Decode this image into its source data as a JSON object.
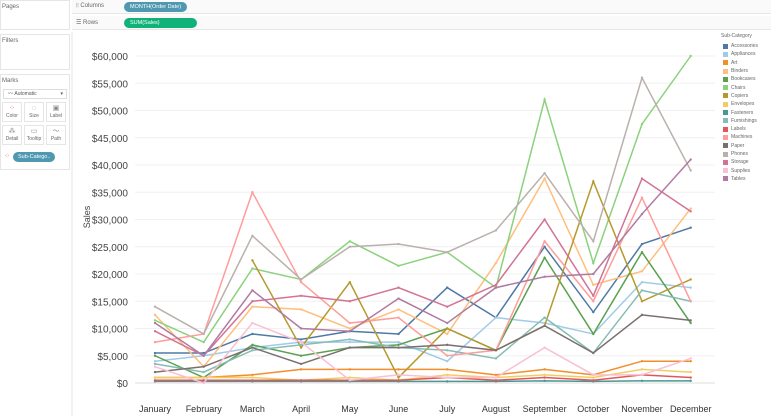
{
  "panels": {
    "pages": "Pages",
    "filters": "Filters",
    "marks": "Marks"
  },
  "marks": {
    "type": "Automatic",
    "buttons": [
      "Color",
      "Size",
      "Label",
      "Detail",
      "Tooltip",
      "Path"
    ],
    "pill": "Sub-Catego.."
  },
  "shelves": {
    "columns_label": "Columns",
    "columns_pill": "MONTH(Order Date)",
    "rows_label": "Rows",
    "rows_pill": "SUM(Sales)"
  },
  "colors": {
    "columns_pill": "#4e98b0",
    "rows_pill": "#0fb37a"
  },
  "chart_data": {
    "type": "line",
    "ylabel": "Sales",
    "xlabel": "",
    "ylim": [
      0,
      60000
    ],
    "yticks": [
      "$0",
      "$5,000",
      "$10,000",
      "$15,000",
      "$20,000",
      "$25,000",
      "$30,000",
      "$35,000",
      "$40,000",
      "$45,000",
      "$50,000",
      "$55,000",
      "$60,000"
    ],
    "categories": [
      "January",
      "February",
      "March",
      "April",
      "May",
      "June",
      "July",
      "August",
      "September",
      "October",
      "November",
      "December"
    ],
    "legend_title": "Sub-Category",
    "legend_position": "right",
    "grid": true,
    "series": [
      {
        "name": "Accessories",
        "color": "#4e79a7",
        "values": [
          5500,
          5500,
          9000,
          8000,
          9500,
          9000,
          17500,
          12000,
          25000,
          13000,
          25500,
          28500
        ]
      },
      {
        "name": "Appliances",
        "color": "#a0cbe8",
        "values": [
          4000,
          5000,
          6500,
          7500,
          7500,
          7500,
          4000,
          12000,
          11000,
          9000,
          18500,
          17500
        ]
      },
      {
        "name": "Art",
        "color": "#f28e2b",
        "values": [
          1000,
          1000,
          1500,
          2500,
          2500,
          2500,
          2500,
          1500,
          2500,
          1500,
          4000,
          4000
        ]
      },
      {
        "name": "Binders",
        "color": "#ffbe7d",
        "values": [
          12500,
          3000,
          14000,
          13500,
          10000,
          13500,
          9000,
          22000,
          37500,
          18000,
          20500,
          32000
        ]
      },
      {
        "name": "Bookcases",
        "color": "#59a14f",
        "values": [
          5000,
          1000,
          7000,
          5000,
          6500,
          7000,
          10000,
          6000,
          23000,
          9000,
          24000,
          11000
        ]
      },
      {
        "name": "Chairs",
        "color": "#8cd17d",
        "values": [
          11500,
          7500,
          21000,
          19000,
          26000,
          21500,
          24000,
          17500,
          52000,
          22000,
          47500,
          60000
        ]
      },
      {
        "name": "Copiers",
        "color": "#b6992d",
        "values": [
          null,
          null,
          22500,
          6500,
          18500,
          1000,
          10000,
          6000,
          10500,
          37000,
          15000,
          19000
        ]
      },
      {
        "name": "Envelopes",
        "color": "#f1ce63",
        "values": [
          1000,
          1000,
          1000,
          500,
          1000,
          500,
          1500,
          1000,
          1500,
          1000,
          2500,
          2000
        ]
      },
      {
        "name": "Fasteners",
        "color": "#499894",
        "values": [
          300,
          300,
          300,
          300,
          300,
          300,
          300,
          300,
          400,
          300,
          400,
          400
        ]
      },
      {
        "name": "Furnishings",
        "color": "#86bcb6",
        "values": [
          3500,
          2000,
          6000,
          7000,
          8000,
          6500,
          6000,
          4500,
          12000,
          5500,
          17000,
          15000
        ]
      },
      {
        "name": "Labels",
        "color": "#e15759",
        "values": [
          500,
          500,
          500,
          500,
          500,
          500,
          1000,
          500,
          1000,
          500,
          1500,
          1000
        ]
      },
      {
        "name": "Machines",
        "color": "#ff9d9a",
        "values": [
          7500,
          9000,
          35000,
          18500,
          11000,
          12000,
          5000,
          6000,
          26000,
          15000,
          34000,
          15000
        ]
      },
      {
        "name": "Paper",
        "color": "#79706e",
        "values": [
          2000,
          3000,
          6500,
          3500,
          6500,
          6500,
          7000,
          6000,
          10500,
          5500,
          12500,
          11500
        ]
      },
      {
        "name": "Phones",
        "color": "#bab0ac",
        "values": [
          14000,
          9000,
          27000,
          19000,
          25000,
          25500,
          24000,
          28000,
          38500,
          26000,
          56000,
          39000
        ]
      },
      {
        "name": "Storage",
        "color": "#d37295",
        "values": [
          9500,
          5000,
          15000,
          16000,
          15000,
          17500,
          14000,
          18000,
          30000,
          16000,
          37500,
          31500
        ]
      },
      {
        "name": "Supplies",
        "color": "#fabfd2",
        "values": [
          3000,
          0,
          11000,
          7500,
          500,
          1500,
          1000,
          1000,
          6500,
          1500,
          1500,
          4500
        ]
      },
      {
        "name": "Tables",
        "color": "#b07aa1",
        "values": [
          11000,
          5000,
          17000,
          10000,
          9500,
          15500,
          11000,
          17500,
          19500,
          20000,
          31000,
          41000
        ]
      }
    ]
  }
}
